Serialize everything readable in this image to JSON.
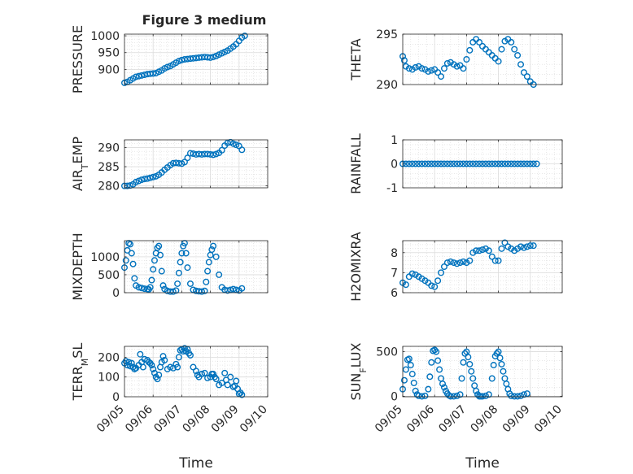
{
  "figure": {
    "title": "Figure 3 medium",
    "xlabel": "Time",
    "marker_color": "#0072bd",
    "date_ticks": [
      "09/05",
      "09/06",
      "09/07",
      "09/08",
      "09/09",
      "09/10"
    ]
  },
  "chart_data": [
    {
      "type": "scatter",
      "panel": "top-left",
      "ylabel_main": "PRESSURE",
      "ylabel_sub": "",
      "yticks": [
        900,
        950,
        1000
      ],
      "ylim": [
        855,
        1005
      ],
      "grid": true,
      "x": [
        5.0,
        5.1,
        5.2,
        5.3,
        5.4,
        5.5,
        5.6,
        5.7,
        5.8,
        5.9,
        6.0,
        6.1,
        6.2,
        6.3,
        6.4,
        6.5,
        6.6,
        6.7,
        6.8,
        6.9,
        7.0,
        7.1,
        7.2,
        7.3,
        7.4,
        7.5,
        7.6,
        7.7,
        7.8,
        7.9,
        8.0,
        8.1,
        8.2,
        8.3,
        8.4,
        8.5,
        8.6,
        8.7,
        8.8,
        8.9,
        9.0,
        9.1,
        9.2
      ],
      "y": [
        860,
        863,
        868,
        873,
        878,
        880,
        882,
        884,
        886,
        887,
        888,
        889,
        893,
        897,
        903,
        907,
        910,
        915,
        920,
        925,
        928,
        930,
        931,
        932,
        933,
        934,
        935,
        936,
        937,
        936,
        935,
        937,
        940,
        944,
        948,
        952,
        956,
        962,
        968,
        975,
        985,
        995,
        1000
      ]
    },
    {
      "type": "scatter",
      "panel": "top-right",
      "ylabel_main": "THETA",
      "ylabel_sub": "",
      "yticks": [
        290,
        295
      ],
      "ylim": [
        290,
        295
      ],
      "grid": true,
      "x": [
        5.0,
        5.05,
        5.1,
        5.2,
        5.3,
        5.4,
        5.5,
        5.6,
        5.7,
        5.8,
        5.9,
        6.0,
        6.1,
        6.2,
        6.3,
        6.4,
        6.5,
        6.6,
        6.7,
        6.8,
        6.9,
        7.0,
        7.1,
        7.2,
        7.3,
        7.4,
        7.5,
        7.6,
        7.7,
        7.8,
        7.9,
        8.0,
        8.1,
        8.2,
        8.3,
        8.4,
        8.5,
        8.6,
        8.7,
        8.8,
        8.9,
        9.0,
        9.1
      ],
      "y": [
        292.8,
        292.4,
        291.8,
        291.6,
        291.5,
        291.7,
        291.8,
        291.6,
        291.5,
        291.3,
        291.4,
        291.5,
        291.2,
        290.8,
        291.6,
        292.1,
        292.2,
        292.0,
        291.8,
        291.9,
        291.6,
        292.5,
        293.4,
        294.2,
        294.5,
        294.2,
        293.8,
        293.5,
        293.2,
        292.9,
        292.6,
        292.3,
        293.5,
        294.3,
        294.5,
        294.2,
        293.5,
        292.9,
        292.0,
        291.2,
        290.8,
        290.3,
        290.0
      ]
    },
    {
      "type": "scatter",
      "panel": "row2-left",
      "ylabel_main": "AIR",
      "ylabel_sub": "T",
      "ylabel_tail": "EMP",
      "yticks": [
        280,
        285,
        290
      ],
      "ylim": [
        279.5,
        292
      ],
      "grid": true,
      "x": [
        5.0,
        5.1,
        5.2,
        5.3,
        5.4,
        5.5,
        5.6,
        5.7,
        5.8,
        5.9,
        6.0,
        6.1,
        6.2,
        6.3,
        6.4,
        6.5,
        6.6,
        6.7,
        6.8,
        6.9,
        7.0,
        7.1,
        7.2,
        7.3,
        7.4,
        7.5,
        7.6,
        7.7,
        7.8,
        7.9,
        8.0,
        8.1,
        8.2,
        8.3,
        8.4,
        8.5,
        8.6,
        8.7,
        8.8,
        8.9,
        9.0,
        9.1
      ],
      "y": [
        280.0,
        280.0,
        280.1,
        280.4,
        281.0,
        281.3,
        281.6,
        281.8,
        281.9,
        282.1,
        282.3,
        282.5,
        282.9,
        283.5,
        284.2,
        284.8,
        285.4,
        285.9,
        286.0,
        285.9,
        285.8,
        286.2,
        287.3,
        288.5,
        288.4,
        288.2,
        288.3,
        288.2,
        288.3,
        288.3,
        288.2,
        288.1,
        288.3,
        288.6,
        289.3,
        290.5,
        291.2,
        291.4,
        291.0,
        290.7,
        290.4,
        289.4
      ]
    },
    {
      "type": "scatter",
      "panel": "row2-right",
      "ylabel_main": "RAINFALL",
      "ylabel_sub": "",
      "yticks": [
        -1,
        0,
        1
      ],
      "ylim": [
        -1,
        1
      ],
      "grid": true,
      "x": [
        5.0,
        5.1,
        5.2,
        5.3,
        5.4,
        5.5,
        5.6,
        5.7,
        5.8,
        5.9,
        6.0,
        6.1,
        6.2,
        6.3,
        6.4,
        6.5,
        6.6,
        6.7,
        6.8,
        6.9,
        7.0,
        7.1,
        7.2,
        7.3,
        7.4,
        7.5,
        7.6,
        7.7,
        7.8,
        7.9,
        8.0,
        8.1,
        8.2,
        8.3,
        8.4,
        8.5,
        8.6,
        8.7,
        8.8,
        8.9,
        9.0,
        9.1,
        9.2
      ],
      "y": [
        0,
        0,
        0,
        0,
        0,
        0,
        0,
        0,
        0,
        0,
        0,
        0,
        0,
        0,
        0,
        0,
        0,
        0,
        0,
        0,
        0,
        0,
        0,
        0,
        0,
        0,
        0,
        0,
        0,
        0,
        0,
        0,
        0,
        0,
        0,
        0,
        0,
        0,
        0,
        0,
        0,
        0,
        0
      ]
    },
    {
      "type": "scatter",
      "panel": "row3-left",
      "ylabel_main": "MIXDEPTH",
      "ylabel_sub": "",
      "yticks": [
        0,
        500,
        1000
      ],
      "ylim": [
        0,
        1450
      ],
      "grid": true,
      "x": [
        5.0,
        5.05,
        5.1,
        5.15,
        5.2,
        5.25,
        5.3,
        5.35,
        5.4,
        5.5,
        5.6,
        5.7,
        5.8,
        5.85,
        5.9,
        5.95,
        6.0,
        6.05,
        6.1,
        6.15,
        6.2,
        6.25,
        6.3,
        6.35,
        6.4,
        6.5,
        6.6,
        6.7,
        6.8,
        6.85,
        6.9,
        6.95,
        7.0,
        7.05,
        7.1,
        7.15,
        7.2,
        7.3,
        7.4,
        7.5,
        7.6,
        7.7,
        7.8,
        7.85,
        7.9,
        7.95,
        8.0,
        8.05,
        8.1,
        8.2,
        8.3,
        8.4,
        8.5,
        8.6,
        8.7,
        8.8,
        8.9,
        9.0,
        9.1
      ],
      "y": [
        700,
        900,
        1180,
        1380,
        1350,
        1100,
        800,
        400,
        200,
        150,
        130,
        110,
        100,
        90,
        150,
        350,
        650,
        900,
        1100,
        1250,
        1300,
        1050,
        600,
        200,
        100,
        50,
        30,
        30,
        60,
        250,
        550,
        850,
        1100,
        1300,
        1380,
        1100,
        700,
        250,
        80,
        50,
        40,
        30,
        50,
        300,
        600,
        850,
        1050,
        1200,
        1300,
        1000,
        500,
        150,
        80,
        60,
        80,
        100,
        80,
        60,
        120
      ]
    },
    {
      "type": "scatter",
      "panel": "row3-right",
      "ylabel_main": "H2OMIXRA",
      "ylabel_sub": "",
      "yticks": [
        6,
        7,
        8
      ],
      "ylim": [
        6,
        8.6
      ],
      "grid": true,
      "x": [
        5.0,
        5.1,
        5.2,
        5.3,
        5.4,
        5.5,
        5.6,
        5.7,
        5.8,
        5.9,
        6.0,
        6.1,
        6.2,
        6.3,
        6.4,
        6.5,
        6.6,
        6.7,
        6.8,
        6.9,
        7.0,
        7.1,
        7.2,
        7.3,
        7.4,
        7.5,
        7.6,
        7.7,
        7.8,
        7.9,
        8.0,
        8.1,
        8.2,
        8.3,
        8.4,
        8.5,
        8.6,
        8.7,
        8.8,
        8.9,
        9.0,
        9.1
      ],
      "y": [
        6.5,
        6.4,
        6.8,
        6.95,
        6.9,
        6.8,
        6.7,
        6.6,
        6.5,
        6.35,
        6.3,
        6.6,
        7.0,
        7.3,
        7.5,
        7.55,
        7.5,
        7.45,
        7.5,
        7.55,
        7.5,
        7.6,
        8.0,
        8.1,
        8.1,
        8.15,
        8.2,
        8.1,
        7.8,
        7.6,
        7.6,
        8.2,
        8.5,
        8.3,
        8.2,
        8.1,
        8.2,
        8.3,
        8.25,
        8.3,
        8.35,
        8.35
      ]
    },
    {
      "type": "scatter",
      "panel": "bottom-left",
      "ylabel_main": "TERR",
      "ylabel_sub": "M",
      "ylabel_tail": "SL",
      "yticks": [
        0,
        100,
        200
      ],
      "ylim": [
        0,
        255
      ],
      "grid": true,
      "x": [
        5.0,
        5.05,
        5.1,
        5.15,
        5.2,
        5.25,
        5.3,
        5.35,
        5.4,
        5.5,
        5.55,
        5.6,
        5.65,
        5.7,
        5.8,
        5.85,
        5.9,
        5.95,
        6.0,
        6.05,
        6.1,
        6.15,
        6.2,
        6.25,
        6.3,
        6.35,
        6.4,
        6.5,
        6.6,
        6.7,
        6.8,
        6.85,
        6.9,
        6.95,
        7.0,
        7.05,
        7.1,
        7.15,
        7.2,
        7.25,
        7.3,
        7.4,
        7.5,
        7.55,
        7.6,
        7.7,
        7.8,
        7.9,
        8.0,
        8.05,
        8.1,
        8.15,
        8.2,
        8.3,
        8.4,
        8.5,
        8.55,
        8.6,
        8.7,
        8.8,
        8.85,
        8.9,
        8.95,
        9.0,
        9.05,
        9.1
      ],
      "y": [
        170,
        180,
        160,
        175,
        155,
        170,
        150,
        140,
        145,
        160,
        215,
        175,
        150,
        190,
        185,
        175,
        170,
        160,
        140,
        120,
        100,
        90,
        110,
        150,
        175,
        205,
        185,
        140,
        150,
        145,
        165,
        150,
        200,
        235,
        240,
        230,
        245,
        230,
        240,
        220,
        210,
        150,
        130,
        110,
        100,
        115,
        120,
        95,
        100,
        115,
        115,
        100,
        90,
        60,
        70,
        120,
        85,
        60,
        100,
        50,
        55,
        80,
        40,
        15,
        20,
        10
      ]
    },
    {
      "type": "scatter",
      "panel": "bottom-right",
      "ylabel_main": "SUN",
      "ylabel_sub": "F",
      "ylabel_tail": "LUX",
      "yticks": [
        0,
        500
      ],
      "ylim": [
        -5,
        560
      ],
      "grid": true,
      "x": [
        5.0,
        5.05,
        5.1,
        5.15,
        5.2,
        5.25,
        5.3,
        5.35,
        5.4,
        5.45,
        5.5,
        5.6,
        5.7,
        5.8,
        5.85,
        5.9,
        5.95,
        6.0,
        6.05,
        6.1,
        6.15,
        6.2,
        6.25,
        6.3,
        6.35,
        6.4,
        6.45,
        6.5,
        6.6,
        6.7,
        6.8,
        6.85,
        6.9,
        6.95,
        7.0,
        7.05,
        7.1,
        7.15,
        7.2,
        7.25,
        7.3,
        7.35,
        7.4,
        7.45,
        7.5,
        7.6,
        7.7,
        7.8,
        7.85,
        7.9,
        7.95,
        8.0,
        8.05,
        8.1,
        8.15,
        8.2,
        8.25,
        8.3,
        8.35,
        8.4,
        8.5,
        8.6,
        8.7,
        8.8,
        8.9
      ],
      "y": [
        80,
        180,
        300,
        410,
        420,
        350,
        250,
        150,
        60,
        20,
        5,
        0,
        5,
        80,
        220,
        380,
        510,
        520,
        500,
        400,
        300,
        200,
        140,
        100,
        60,
        30,
        10,
        0,
        0,
        5,
        20,
        200,
        380,
        480,
        500,
        440,
        360,
        280,
        200,
        120,
        60,
        20,
        0,
        0,
        0,
        5,
        20,
        200,
        350,
        450,
        480,
        500,
        430,
        360,
        280,
        200,
        140,
        80,
        30,
        5,
        0,
        0,
        5,
        20,
        30
      ]
    }
  ]
}
